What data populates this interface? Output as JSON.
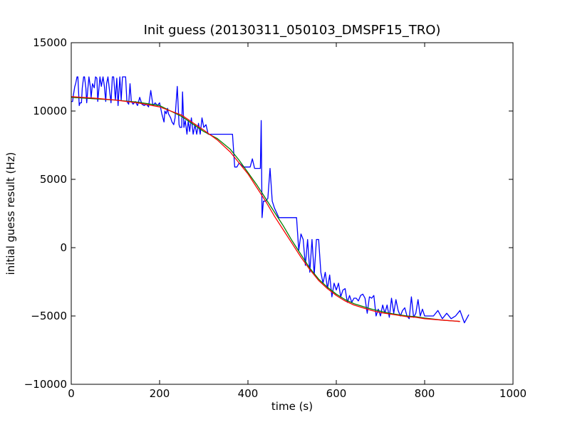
{
  "chart_data": {
    "type": "line",
    "title": "Init guess (20130311_050103_DMSPF15_TRO)",
    "xlabel": "time (s)",
    "ylabel": "initial guess result (Hz)",
    "xlim": [
      0,
      1000
    ],
    "ylim": [
      -10000,
      15000
    ],
    "xticks": [
      0,
      200,
      400,
      600,
      800,
      1000
    ],
    "yticks": [
      -10000,
      -5000,
      0,
      5000,
      10000,
      15000
    ],
    "xtick_labels": [
      "0",
      "200",
      "400",
      "600",
      "800",
      "1000"
    ],
    "ytick_labels": [
      "−10000",
      "−5000",
      "0",
      "5000",
      "10000",
      "15000"
    ],
    "grid": false,
    "legend": "none",
    "series": [
      {
        "color": "#0000ff",
        "x": [
          0,
          3,
          5,
          8,
          10,
          13,
          15,
          18,
          20,
          23,
          25,
          28,
          30,
          33,
          35,
          38,
          40,
          43,
          45,
          48,
          52,
          55,
          58,
          60,
          63,
          65,
          68,
          72,
          75,
          78,
          80,
          83,
          86,
          90,
          93,
          96,
          100,
          103,
          106,
          110,
          113,
          116,
          120,
          123,
          126,
          130,
          133,
          136,
          140,
          145,
          150,
          155,
          160,
          165,
          170,
          175,
          180,
          185,
          190,
          195,
          200,
          205,
          210,
          212,
          215,
          218,
          220,
          225,
          228,
          232,
          235,
          240,
          244,
          246,
          250,
          252,
          255,
          258,
          262,
          265,
          268,
          272,
          276,
          280,
          284,
          288,
          292,
          296,
          300,
          305,
          310,
          315,
          320,
          330,
          340,
          345,
          350,
          355,
          360,
          365,
          370,
          375,
          380,
          390,
          395,
          400,
          405,
          410,
          415,
          420,
          425,
          428,
          430,
          432,
          435,
          440,
          445,
          450,
          455,
          460,
          470,
          480,
          490,
          495,
          500,
          505,
          510,
          515,
          520,
          525,
          530,
          535,
          540,
          545,
          550,
          555,
          560,
          565,
          570,
          575,
          580,
          585,
          590,
          595,
          600,
          605,
          610,
          615,
          620,
          625,
          630,
          635,
          640,
          645,
          650,
          655,
          660,
          665,
          670,
          675,
          680,
          685,
          690,
          695,
          700,
          705,
          710,
          715,
          720,
          725,
          730,
          735,
          740,
          745,
          750,
          755,
          760,
          765,
          770,
          775,
          780,
          785,
          790,
          795,
          800,
          810,
          820,
          830,
          840,
          850,
          860,
          870,
          880,
          890,
          900
        ],
        "y": [
          10700,
          10700,
          11200,
          11800,
          12000,
          12500,
          12500,
          10400,
          10600,
          10600,
          11700,
          12500,
          12500,
          11700,
          10600,
          11800,
          12500,
          11800,
          11000,
          12000,
          11700,
          12500,
          12400,
          10700,
          11800,
          12500,
          11800,
          12500,
          11800,
          10700,
          12000,
          12500,
          11700,
          10600,
          12500,
          12500,
          10800,
          12400,
          10400,
          12500,
          10800,
          12500,
          12500,
          12500,
          10700,
          10500,
          12000,
          10700,
          10500,
          10700,
          10400,
          11000,
          10500,
          10400,
          10500,
          10300,
          11500,
          10400,
          10600,
          10400,
          10600,
          9800,
          9200,
          10000,
          9800,
          10200,
          9800,
          9500,
          9200,
          9000,
          9500,
          11800,
          9000,
          8800,
          8800,
          11400,
          8800,
          9300,
          8300,
          9300,
          8500,
          9500,
          8300,
          9000,
          8300,
          9100,
          8300,
          9500,
          8800,
          9000,
          8300,
          8300,
          8300,
          8300,
          8300,
          8300,
          8300,
          8300,
          8300,
          8300,
          5900,
          5900,
          6200,
          5900,
          5900,
          5900,
          5900,
          6500,
          5800,
          5800,
          5800,
          5800,
          9300,
          2200,
          3400,
          3400,
          3600,
          5800,
          3400,
          2900,
          2200,
          2200,
          2200,
          2200,
          2200,
          2200,
          2200,
          -200,
          1000,
          600,
          -1300,
          600,
          -1800,
          600,
          -2000,
          600,
          600,
          -1800,
          -2600,
          -1800,
          -3000,
          -2000,
          -3600,
          -2600,
          -3100,
          -2600,
          -3600,
          -3100,
          -3000,
          -4000,
          -3500,
          -4000,
          -3700,
          -3700,
          -3900,
          -3500,
          -3400,
          -3700,
          -4800,
          -3600,
          -3700,
          -3500,
          -5000,
          -4500,
          -5000,
          -4200,
          -4800,
          -4200,
          -5100,
          -3700,
          -4800,
          -3800,
          -4600,
          -5000,
          -4600,
          -4400,
          -5000,
          -5200,
          -3600,
          -5100,
          -4800,
          -3800,
          -5000,
          -4500,
          -5000,
          -5000,
          -5000,
          -4600,
          -5200,
          -4800,
          -5200,
          -5000,
          -4600,
          -5500,
          -4900
        ]
      },
      {
        "color": "#008000",
        "x": [
          0,
          50,
          100,
          150,
          200,
          250,
          300,
          330,
          360,
          380,
          400,
          420,
          440,
          460,
          480,
          500,
          520,
          540,
          560,
          580,
          600,
          620,
          640,
          660,
          680,
          700,
          720,
          740,
          760,
          780,
          800,
          840,
          880
        ],
        "y": [
          11000,
          10900,
          10800,
          10650,
          10400,
          9600,
          8500,
          8000,
          7200,
          6400,
          5500,
          4600,
          3600,
          2600,
          1600,
          500,
          -500,
          -1500,
          -2300,
          -2900,
          -3400,
          -3800,
          -4100,
          -4300,
          -4500,
          -4650,
          -4800,
          -4900,
          -5000,
          -5050,
          -5150,
          -5300,
          -5400
        ]
      },
      {
        "color": "#ff0000",
        "x": [
          0,
          50,
          100,
          150,
          200,
          250,
          300,
          330,
          360,
          380,
          400,
          420,
          440,
          460,
          480,
          500,
          520,
          540,
          560,
          580,
          600,
          620,
          640,
          660,
          680,
          700,
          720,
          740,
          760,
          780,
          800,
          840,
          880
        ],
        "y": [
          11050,
          10950,
          10800,
          10600,
          10300,
          9700,
          8600,
          7900,
          7000,
          6200,
          5400,
          4400,
          3400,
          2300,
          1300,
          300,
          -700,
          -1600,
          -2400,
          -3000,
          -3500,
          -3900,
          -4200,
          -4400,
          -4600,
          -4750,
          -4850,
          -4950,
          -5050,
          -5100,
          -5200,
          -5300,
          -5400
        ]
      }
    ]
  }
}
